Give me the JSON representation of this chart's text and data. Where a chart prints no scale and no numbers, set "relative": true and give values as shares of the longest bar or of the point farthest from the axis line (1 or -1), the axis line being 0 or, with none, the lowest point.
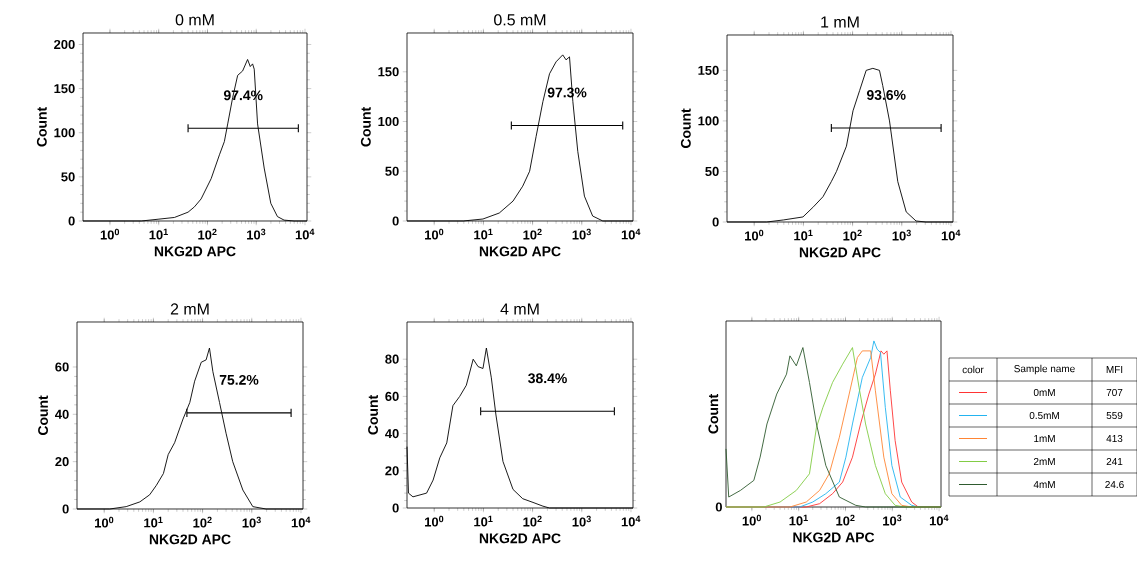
{
  "chart_data": [
    {
      "type": "line",
      "title": "0 mM",
      "xlabel": "NKG2D APC",
      "ylabel": "Count",
      "log": "x",
      "xlim": [
        0.28,
        11000
      ],
      "xticks": [
        {
          "value": 1,
          "label": "10$^{0}$"
        },
        {
          "value": 10,
          "label": "10$^{1}$"
        },
        {
          "value": 100,
          "label": "10$^{2}$"
        },
        {
          "value": 1000,
          "label": "10$^{3}$"
        },
        {
          "value": 10000,
          "label": "10$^{4}$"
        }
      ],
      "ylim": [
        0,
        213
      ],
      "yticks": [
        0,
        50,
        100,
        150,
        200
      ],
      "series": [
        {
          "type": "line",
          "color": "#000000",
          "x": [
            0.28,
            4.4,
            9.7,
            21,
            40,
            54,
            74,
            119,
            176,
            222,
            260,
            329,
            416,
            526,
            665,
            755,
            841,
            910,
            1065,
            1456,
            1991,
            2723,
            3726,
            5970,
            11000
          ],
          "values": [
            0,
            0,
            2,
            4,
            10,
            16,
            25,
            48,
            75,
            90,
            110,
            140,
            165,
            170,
            183,
            175,
            178,
            172,
            110,
            60,
            20,
            5,
            1,
            0,
            0
          ]
        },
        {
          "type": "line",
          "color": "#000000",
          "x": [
            40,
            7310
          ],
          "values": [
            105,
            105
          ],
          "errors": [
            4.5,
            4.5
          ]
        }
      ],
      "annotations": [
        "97.4%"
      ]
    },
    {
      "type": "line",
      "title": "0.5 mM",
      "xlabel": "NKG2D APC",
      "ylabel": "Count",
      "log": "x",
      "xlim": [
        0.28,
        11000
      ],
      "xticks": [
        {
          "value": 1,
          "label": "10$^{0}$"
        },
        {
          "value": 10,
          "label": "10$^{1}$"
        },
        {
          "value": 100,
          "label": "10$^{2}$"
        },
        {
          "value": 1000,
          "label": "10$^{3}$"
        },
        {
          "value": 10000,
          "label": "10$^{4}$"
        }
      ],
      "ylim": [
        0,
        189
      ],
      "yticks": [
        0,
        50,
        100,
        150
      ],
      "series": [
        {
          "type": "line",
          "color": "#000000",
          "x": [
            0.28,
            3.9,
            9.8,
            21,
            40,
            63,
            87,
            118,
            162,
            221,
            300,
            410,
            479,
            563,
            659,
            829,
            1131,
            1663,
            2676,
            11000
          ],
          "values": [
            0,
            0,
            2,
            8,
            20,
            35,
            50,
            85,
            120,
            148,
            160,
            167,
            162,
            165,
            120,
            70,
            25,
            5,
            0,
            0
          ]
        },
        {
          "type": "line",
          "color": "#000000",
          "x": [
            37,
            6800
          ],
          "values": [
            96,
            96
          ],
          "errors": [
            4,
            4
          ]
        }
      ],
      "annotations": [
        "97.3%"
      ]
    },
    {
      "type": "line",
      "title": "1 mM",
      "xlabel": "NKG2D APC",
      "ylabel": "Count",
      "log": "x",
      "xlim": [
        0.28,
        11000
      ],
      "xticks": [
        {
          "value": 1,
          "label": "10$^{0}$"
        },
        {
          "value": 10,
          "label": "10$^{1}$"
        },
        {
          "value": 100,
          "label": "10$^{2}$"
        },
        {
          "value": 1000,
          "label": "10$^{3}$"
        },
        {
          "value": 10000,
          "label": "10$^{4}$"
        }
      ],
      "ylim": [
        0,
        185
      ],
      "yticks": [
        0,
        50,
        100,
        150
      ],
      "series": [
        {
          "type": "line",
          "color": "#000000",
          "x": [
            0.28,
            1.8,
            3.9,
            9.8,
            16,
            25,
            37,
            47,
            75,
            102,
            139,
            189,
            258,
            352,
            410,
            563,
            829,
            1230,
            1950,
            3100,
            11000
          ],
          "values": [
            0,
            0,
            2,
            5,
            15,
            25,
            40,
            50,
            75,
            110,
            130,
            150,
            152,
            150,
            135,
            100,
            40,
            10,
            1,
            0,
            0
          ]
        },
        {
          "type": "line",
          "color": "#000000",
          "x": [
            37,
            6300
          ],
          "values": [
            93,
            93
          ],
          "errors": [
            4,
            4
          ]
        }
      ],
      "annotations": [
        "93.6%"
      ]
    },
    {
      "type": "line",
      "title": "2 mM",
      "xlabel": "NKG2D APC",
      "ylabel": "Count",
      "log": "x",
      "xlim": [
        0.28,
        11000
      ],
      "xticks": [
        {
          "value": 1,
          "label": "10$^{0}$"
        },
        {
          "value": 10,
          "label": "10$^{1}$"
        },
        {
          "value": 100,
          "label": "10$^{2}$"
        },
        {
          "value": 1000,
          "label": "10$^{3}$"
        },
        {
          "value": 10000,
          "label": "10$^{4}$"
        }
      ],
      "ylim": [
        0,
        79
      ],
      "yticks": [
        0,
        20,
        40,
        60
      ],
      "series": [
        {
          "type": "line",
          "color": "#000000",
          "x": [
            0.28,
            1.3,
            2.8,
            5.3,
            8.4,
            11.5,
            16,
            20,
            27,
            40,
            55,
            69,
            94,
            118,
            138,
            162,
            221,
            300,
            410,
            659,
            1050,
            1950,
            11000
          ],
          "values": [
            0,
            0,
            1,
            3,
            6,
            10,
            15,
            23,
            28,
            38,
            45,
            54,
            62,
            63,
            68,
            58,
            45,
            32,
            20,
            8,
            1,
            0,
            0
          ]
        },
        {
          "type": "line",
          "color": "#000000",
          "x": [
            48,
            6300
          ],
          "values": [
            40.6,
            40.6
          ],
          "errors": [
            1.7,
            1.7
          ]
        }
      ],
      "annotations": [
        "75.2%"
      ]
    },
    {
      "type": "line",
      "title": "4 mM",
      "xlabel": "NKG2D APC",
      "ylabel": "Count",
      "log": "x",
      "xlim": [
        0.28,
        11000
      ],
      "xticks": [
        {
          "value": 1,
          "label": "10$^{0}$"
        },
        {
          "value": 10,
          "label": "10$^{1}$"
        },
        {
          "value": 100,
          "label": "10$^{2}$"
        },
        {
          "value": 1000,
          "label": "10$^{3}$"
        },
        {
          "value": 10000,
          "label": "10$^{4}$"
        }
      ],
      "ylim": [
        0,
        100
      ],
      "yticks": [
        0,
        20,
        40,
        60,
        80
      ],
      "series": [
        {
          "type": "line",
          "color": "#000000",
          "x": [
            0.28,
            0.3,
            0.37,
            0.7,
            0.95,
            1.3,
            1.8,
            2.4,
            3.3,
            4.5,
            6.2,
            7.8,
            9.8,
            11.5,
            14.5,
            18,
            25,
            40,
            63,
            102,
            162,
            221,
            11000
          ],
          "values": [
            33,
            8,
            6,
            8,
            15,
            27,
            35,
            55,
            60,
            66,
            80,
            76,
            75,
            86,
            70,
            50,
            25,
            10,
            5,
            3,
            1,
            0,
            0
          ]
        },
        {
          "type": "line",
          "color": "#000000",
          "x": [
            8.8,
            4600
          ],
          "values": [
            52,
            52
          ],
          "errors": [
            2.2,
            2.2
          ]
        }
      ],
      "annotations": [
        "38.4%"
      ]
    },
    {
      "type": "line",
      "xlabel": "NKG2D APC",
      "ylabel": "Count",
      "log": "x",
      "relative": true,
      "xlim": [
        0.28,
        11000
      ],
      "xticks": [
        {
          "value": 1,
          "label": "10$^{0}$"
        },
        {
          "value": 10,
          "label": "10$^{1}$"
        },
        {
          "value": 100,
          "label": "10$^{2}$"
        },
        {
          "value": 1000,
          "label": "10$^{3}$"
        },
        {
          "value": 10000,
          "label": "10$^{4}$"
        }
      ],
      "legend": "right",
      "series": [
        {
          "name": "0mM",
          "color": "#ff3333",
          "x": [
            0.28,
            14.5,
            28,
            53,
            87,
            141,
            210,
            316,
            436,
            575,
            660,
            770,
            910,
            1150,
            1590,
            2600,
            3600,
            11000
          ],
          "values": [
            0,
            0,
            0.02,
            0.08,
            0.15,
            0.3,
            0.5,
            0.68,
            0.8,
            0.94,
            0.92,
            0.94,
            0.7,
            0.4,
            0.15,
            0.03,
            0,
            0
          ]
        },
        {
          "name": "0.5mM",
          "color": "#22b4f0",
          "x": [
            0.28,
            10.5,
            20,
            38,
            74,
            102,
            141,
            229,
            345,
            405,
            475,
            560,
            710,
            980,
            1480,
            2600,
            3600,
            11000
          ],
          "values": [
            0,
            0,
            0.03,
            0.08,
            0.15,
            0.3,
            0.5,
            0.78,
            0.9,
            1.0,
            0.95,
            0.93,
            0.6,
            0.25,
            0.06,
            0.01,
            0,
            0
          ]
        },
        {
          "name": "1mM",
          "color": "#ff8533",
          "x": [
            0.28,
            6.5,
            14.5,
            28,
            45,
            74,
            120,
            180,
            229,
            345,
            436,
            660,
            980,
            1590,
            2600,
            11000
          ],
          "values": [
            0,
            0,
            0.03,
            0.1,
            0.2,
            0.42,
            0.68,
            0.9,
            0.94,
            0.94,
            0.7,
            0.3,
            0.08,
            0.01,
            0,
            0
          ]
        },
        {
          "name": "2mM",
          "color": "#82cc44",
          "x": [
            0.28,
            1.8,
            4.0,
            8.9,
            17,
            24,
            33,
            53,
            87,
            141,
            195,
            269,
            436,
            710,
            1150,
            1860,
            11000
          ],
          "values": [
            0,
            0,
            0.03,
            0.1,
            0.2,
            0.48,
            0.6,
            0.75,
            0.86,
            0.96,
            0.72,
            0.5,
            0.25,
            0.08,
            0.01,
            0,
            0
          ]
        },
        {
          "name": "4mM",
          "color": "#2e5a2e",
          "x": [
            0.28,
            0.32,
            0.57,
            1.1,
            1.5,
            2.1,
            3.4,
            5.5,
            6.5,
            8.9,
            12.3,
            17,
            24,
            38,
            74,
            166,
            269,
            11000
          ],
          "values": [
            0.35,
            0.06,
            0.1,
            0.16,
            0.3,
            0.5,
            0.68,
            0.8,
            0.91,
            0.85,
            0.96,
            0.75,
            0.5,
            0.25,
            0.06,
            0.01,
            0,
            0
          ]
        }
      ],
      "annotations": [
        "0",
        "color",
        "Sample name",
        "MFI",
        "707",
        "559",
        "413",
        "241",
        "24.6"
      ]
    }
  ]
}
